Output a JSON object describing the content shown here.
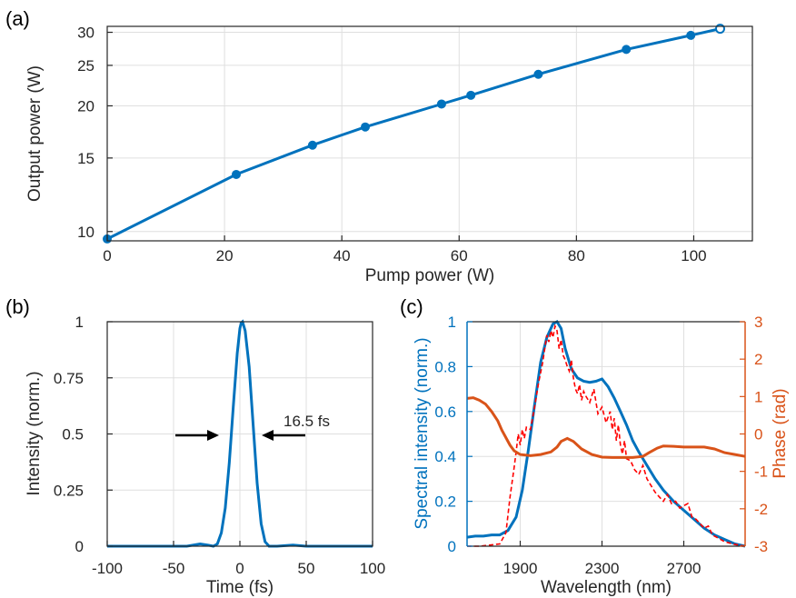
{
  "chart_data": [
    {
      "panel": "(a)",
      "type": "line",
      "xlabel": "Pump power (W)",
      "ylabel": "Output power (W)",
      "xlim": [
        0,
        110
      ],
      "ylim": [
        9.5,
        31
      ],
      "yscale": "log",
      "xticks": [
        0,
        20,
        40,
        60,
        80,
        100
      ],
      "yticks": [
        10,
        15,
        20,
        25,
        30
      ],
      "grid": true,
      "color": "#0072BD",
      "series": [
        {
          "x": [
            0,
            22,
            35,
            44,
            57,
            62,
            73.5,
            88.5,
            99.5,
            104.5
          ],
          "y": [
            9.6,
            13.7,
            16.1,
            17.8,
            20.2,
            21.2,
            23.8,
            27.3,
            29.5,
            30.6
          ]
        }
      ]
    },
    {
      "panel": "(b)",
      "type": "line",
      "xlabel": "Time (fs)",
      "ylabel": "Intensity (norm.)",
      "xlim": [
        -100,
        100
      ],
      "ylim": [
        0,
        1
      ],
      "xticks": [
        -100,
        -50,
        0,
        50,
        100
      ],
      "yticks": [
        0,
        0.25,
        0.5,
        0.75,
        1
      ],
      "grid": true,
      "annotation": "16.5 fs",
      "color": "#0072BD",
      "series": [
        {
          "x": [
            -100,
            -40,
            -30,
            -24,
            -20,
            -17,
            -14,
            -11,
            -8,
            -5,
            -2,
            0,
            1,
            2,
            4,
            7,
            10,
            13,
            16,
            19,
            22,
            28,
            40,
            50,
            60,
            100
          ],
          "y": [
            0.0,
            0.0,
            0.01,
            0.005,
            0.0,
            0.01,
            0.06,
            0.17,
            0.37,
            0.62,
            0.86,
            0.97,
            0.995,
            1.0,
            0.96,
            0.8,
            0.54,
            0.28,
            0.1,
            0.02,
            0.0,
            0.0,
            0.005,
            0.0,
            0.0,
            0.0
          ]
        }
      ]
    },
    {
      "panel": "(c)",
      "type": "line",
      "xlabel": "Wavelength (nm)",
      "ylabel": "Spectral intensity (norm.)",
      "y2label": "Phase (rad)",
      "xlim": [
        1640,
        3000
      ],
      "ylim": [
        0,
        1
      ],
      "y2lim": [
        -3,
        3
      ],
      "xticks": [
        1900,
        2300,
        2700
      ],
      "yticks": [
        0,
        0.2,
        0.4,
        0.6,
        0.8,
        1
      ],
      "y2ticks": [
        -3,
        -2,
        -1,
        0,
        1,
        2,
        3
      ],
      "grid": true,
      "left_axis_color": "#0072BD",
      "right_axis_color": "#D95319",
      "series": [
        {
          "style": "solid",
          "axis": "left",
          "color": "#0072BD",
          "x": [
            1640,
            1680,
            1720,
            1760,
            1800,
            1840,
            1880,
            1910,
            1940,
            1970,
            2000,
            2030,
            2060,
            2080,
            2100,
            2120,
            2150,
            2180,
            2210,
            2240,
            2270,
            2300,
            2330,
            2360,
            2390,
            2420,
            2450,
            2480,
            2520,
            2560,
            2600,
            2650,
            2700,
            2750,
            2800,
            2850,
            2900,
            2950,
            3000
          ],
          "y": [
            0.04,
            0.045,
            0.045,
            0.05,
            0.05,
            0.07,
            0.13,
            0.25,
            0.43,
            0.63,
            0.82,
            0.93,
            0.99,
            1.0,
            0.97,
            0.88,
            0.79,
            0.75,
            0.735,
            0.73,
            0.735,
            0.745,
            0.71,
            0.66,
            0.6,
            0.54,
            0.47,
            0.42,
            0.36,
            0.3,
            0.25,
            0.2,
            0.16,
            0.12,
            0.08,
            0.05,
            0.03,
            0.01,
            0.0
          ]
        },
        {
          "style": "dashed",
          "axis": "left",
          "color": "#FF0000",
          "x": [
            1640,
            1700,
            1750,
            1800,
            1830,
            1850,
            1870,
            1880,
            1890,
            1900,
            1910,
            1920,
            1930,
            1950,
            1970,
            1990,
            2010,
            2020,
            2030,
            2040,
            2050,
            2060,
            2070,
            2080,
            2090,
            2100,
            2110,
            2120,
            2130,
            2140,
            2150,
            2160,
            2170,
            2180,
            2190,
            2200,
            2210,
            2220,
            2240,
            2260,
            2280,
            2300,
            2320,
            2340,
            2350,
            2360,
            2370,
            2380,
            2390,
            2400,
            2410,
            2420,
            2440,
            2460,
            2480,
            2500,
            2520,
            2540,
            2560,
            2580,
            2600,
            2620,
            2640,
            2660,
            2680,
            2700,
            2720,
            2740,
            2760,
            2780,
            2800,
            2820,
            2840,
            2860,
            2880,
            2900,
            2940,
            3000
          ],
          "y": [
            0.0,
            0.0,
            0.005,
            0.01,
            0.06,
            0.22,
            0.35,
            0.42,
            0.5,
            0.45,
            0.52,
            0.48,
            0.53,
            0.52,
            0.62,
            0.73,
            0.82,
            0.88,
            0.94,
            0.91,
            0.96,
            0.93,
            0.98,
            0.96,
            0.88,
            0.92,
            0.85,
            0.83,
            0.8,
            0.78,
            0.83,
            0.75,
            0.7,
            0.68,
            0.72,
            0.65,
            0.69,
            0.67,
            0.64,
            0.7,
            0.59,
            0.62,
            0.55,
            0.6,
            0.52,
            0.57,
            0.47,
            0.54,
            0.45,
            0.41,
            0.47,
            0.39,
            0.38,
            0.34,
            0.32,
            0.36,
            0.3,
            0.27,
            0.24,
            0.22,
            0.2,
            0.23,
            0.19,
            0.2,
            0.17,
            0.18,
            0.19,
            0.13,
            0.12,
            0.1,
            0.08,
            0.09,
            0.05,
            0.04,
            0.03,
            0.02,
            0.01,
            0.0
          ]
        },
        {
          "style": "solid",
          "axis": "right",
          "color": "#D95319",
          "x": [
            1640,
            1670,
            1700,
            1730,
            1760,
            1790,
            1810,
            1830,
            1850,
            1870,
            1900,
            1950,
            2000,
            2050,
            2080,
            2100,
            2130,
            2160,
            2200,
            2250,
            2300,
            2350,
            2400,
            2450,
            2500,
            2530,
            2570,
            2600,
            2650,
            2700,
            2750,
            2800,
            2850,
            2900,
            2950,
            3000
          ],
          "y": [
            0.95,
            0.97,
            0.9,
            0.8,
            0.6,
            0.35,
            0.1,
            -0.1,
            -0.3,
            -0.45,
            -0.55,
            -0.58,
            -0.55,
            -0.48,
            -0.35,
            -0.2,
            -0.12,
            -0.2,
            -0.4,
            -0.55,
            -0.62,
            -0.63,
            -0.63,
            -0.63,
            -0.6,
            -0.5,
            -0.38,
            -0.32,
            -0.33,
            -0.35,
            -0.35,
            -0.35,
            -0.4,
            -0.5,
            -0.55,
            -0.6
          ]
        }
      ]
    }
  ]
}
